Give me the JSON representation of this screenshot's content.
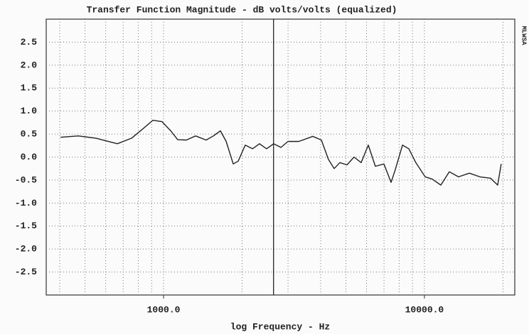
{
  "chart_data": {
    "type": "line",
    "title": "Transfer Function Magnitude - dB volts/volts (equalized)",
    "x_label": "log Frequency - Hz",
    "side_label": "MLWSA",
    "x": [
      403,
      471,
      551,
      665,
      754,
      828,
      910,
      987,
      1065,
      1133,
      1222,
      1327,
      1456,
      1552,
      1652,
      1738,
      1849,
      1932,
      2056,
      2192,
      2333,
      2483,
      2644,
      2818,
      2999,
      3296,
      3733,
      4027,
      4286,
      4508,
      4742,
      5047,
      5372,
      5718,
      6095,
      6486,
      6998,
      7447,
      7727,
      8241,
      8715,
      9268,
      10069,
      10715,
      11560,
      12453,
      13514,
      14854,
      16325,
      17920,
      19089,
      19690
    ],
    "values": [
      0.43,
      0.46,
      0.41,
      0.29,
      0.41,
      0.6,
      0.8,
      0.77,
      0.57,
      0.38,
      0.37,
      0.46,
      0.37,
      0.46,
      0.57,
      0.34,
      -0.15,
      -0.09,
      0.26,
      0.18,
      0.29,
      0.18,
      0.29,
      0.21,
      0.34,
      0.34,
      0.45,
      0.37,
      -0.05,
      -0.25,
      -0.12,
      -0.17,
      0,
      -0.12,
      0.26,
      -0.2,
      -0.15,
      -0.55,
      -0.28,
      0.26,
      0.18,
      -0.12,
      -0.43,
      -0.48,
      -0.61,
      -0.32,
      -0.43,
      -0.35,
      -0.43,
      -0.46,
      -0.61,
      -0.15
    ],
    "color": "#222222",
    "log_x": true,
    "xlim": [
      355,
      22200
    ],
    "xticks": [
      {
        "value": 1000,
        "label": "1000.0"
      },
      {
        "value": 10000,
        "label": "10000.0"
      }
    ],
    "xgrid": [
      400,
      500,
      600,
      700,
      800,
      900,
      1000,
      2000,
      3000,
      4000,
      5000,
      6000,
      7000,
      8000,
      9000,
      10000,
      20000
    ],
    "cursor_x": 2640,
    "ylim": [
      -3,
      3
    ],
    "yticks": [
      2.5,
      {
        "value": 2,
        "label": "2.0"
      },
      1.5,
      {
        "value": 1,
        "label": "1.0"
      },
      0.5,
      {
        "value": 0,
        "label": "0.0"
      },
      -0.5,
      {
        "value": -1,
        "label": "-1.0"
      },
      -1.5,
      {
        "value": -2,
        "label": "-2.0"
      },
      -2.5
    ],
    "grid": true
  }
}
